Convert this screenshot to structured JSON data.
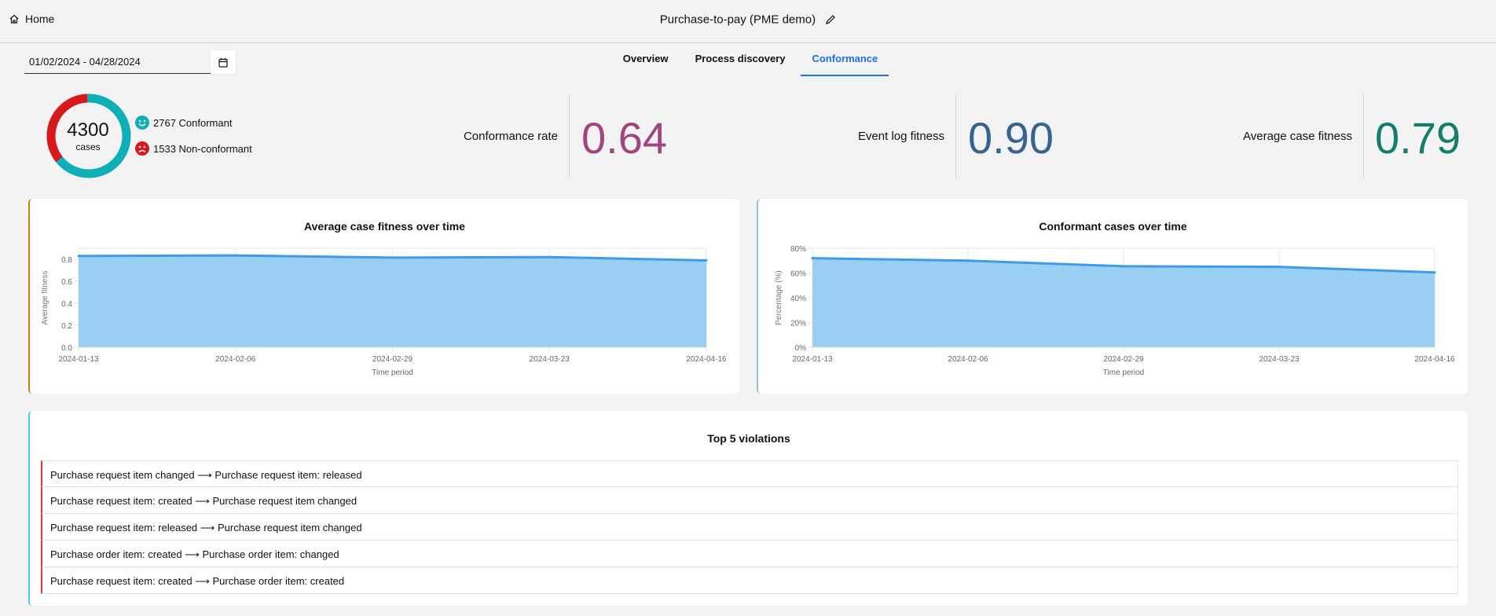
{
  "header": {
    "home_label": "Home",
    "title": "Purchase-to-pay (PME demo)",
    "edit_icon": "pencil-icon",
    "home_icon": "home-icon"
  },
  "date_range": {
    "value": "01/02/2024 - 04/28/2024",
    "icon": "calendar-icon"
  },
  "tabs": [
    {
      "label": "Overview"
    },
    {
      "label": "Process discovery"
    },
    {
      "label": "Conformance",
      "active": true
    }
  ],
  "summary": {
    "total": "4300",
    "total_label": "cases",
    "conformant": {
      "count": 2767,
      "text": "2767 Conformant",
      "color": "#0fb0b5"
    },
    "non_conformant": {
      "count": 1533,
      "text": "1533 Non-conformant",
      "color": "#d7191c"
    }
  },
  "kpis": [
    {
      "label": "Conformance rate",
      "value": "0.64",
      "color": "#a0457f"
    },
    {
      "label": "Event log fitness",
      "value": "0.90",
      "color": "#38628f"
    },
    {
      "label": "Average case fitness",
      "value": "0.79",
      "color": "#137e6c"
    }
  ],
  "chart_data": [
    {
      "type": "area",
      "title": "Average case fitness over time",
      "xlabel": "Time period",
      "ylabel": "Average fitness",
      "x": [
        "2024-01-13",
        "2024-02-06",
        "2024-02-29",
        "2024-03-23",
        "2024-04-16"
      ],
      "values": [
        0.83,
        0.835,
        0.815,
        0.82,
        0.79
      ],
      "ylim": [
        0,
        0.9
      ],
      "yticks": [
        "0.0",
        "0.2",
        "0.4",
        "0.6",
        "0.8"
      ],
      "ytick_values": [
        0,
        0.2,
        0.4,
        0.6,
        0.8
      ],
      "grid": true,
      "color": "#3d9be9",
      "accent": "#c77d1a"
    },
    {
      "type": "area",
      "title": "Conformant cases over time",
      "xlabel": "Time period",
      "ylabel": "Percentage (%)",
      "x": [
        "2024-01-13",
        "2024-02-06",
        "2024-02-29",
        "2024-03-23",
        "2024-04-16"
      ],
      "values": [
        72,
        70,
        65.5,
        65,
        60.5
      ],
      "ylim": [
        0,
        80
      ],
      "yticks": [
        "0%",
        "20%",
        "40%",
        "60%",
        "80%"
      ],
      "ytick_values": [
        0,
        20,
        40,
        60,
        80
      ],
      "grid": true,
      "color": "#3d9be9",
      "accent": "#8fc4d6"
    }
  ],
  "violations": {
    "title": "Top 5 violations",
    "items": [
      "Purchase request item changed ⟶ Purchase request item: released",
      "Purchase request item: created ⟶ Purchase request item changed",
      "Purchase request item: released ⟶ Purchase request item changed",
      "Purchase order item: created ⟶ Purchase order item: changed",
      "Purchase request item: created ⟶ Purchase order item: created"
    ]
  }
}
